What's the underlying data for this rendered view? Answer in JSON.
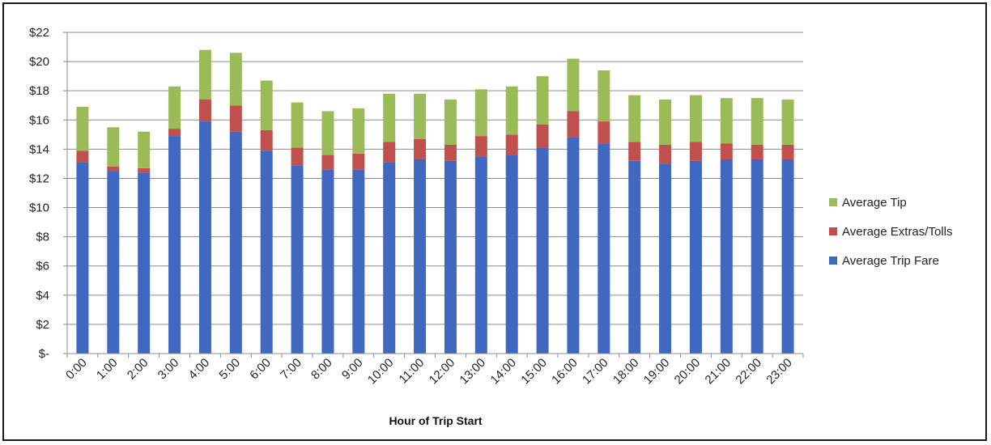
{
  "chart_data": {
    "type": "bar",
    "stacked": true,
    "title": "",
    "xlabel": "Hour of Trip Start",
    "ylabel": "",
    "ylim": [
      0,
      22
    ],
    "y_ticks": [
      0,
      2,
      4,
      6,
      8,
      10,
      12,
      14,
      16,
      18,
      20,
      22
    ],
    "y_tick_labels": [
      "$-",
      "$2",
      "$4",
      "$6",
      "$8",
      "$10",
      "$12",
      "$14",
      "$16",
      "$18",
      "$20",
      "$22"
    ],
    "grid": true,
    "legend_position": "right",
    "categories": [
      "0:00",
      "1:00",
      "2:00",
      "3:00",
      "4:00",
      "5:00",
      "6:00",
      "7:00",
      "8:00",
      "9:00",
      "10:00",
      "11:00",
      "12:00",
      "13:00",
      "14:00",
      "15:00",
      "16:00",
      "17:00",
      "18:00",
      "19:00",
      "20:00",
      "21:00",
      "22:00",
      "23:00"
    ],
    "series": [
      {
        "name": "Average Trip Fare",
        "color": "#4068C0",
        "values": [
          13.1,
          12.5,
          12.4,
          14.9,
          15.9,
          15.2,
          13.9,
          12.9,
          12.6,
          12.6,
          13.1,
          13.3,
          13.2,
          13.5,
          13.6,
          14.1,
          14.8,
          14.4,
          13.2,
          13.0,
          13.2,
          13.3,
          13.3,
          13.3
        ]
      },
      {
        "name": "Average Extras/Tolls",
        "color": "#C0504D",
        "values": [
          0.8,
          0.3,
          0.3,
          0.5,
          1.5,
          1.8,
          1.4,
          1.2,
          1.0,
          1.1,
          1.4,
          1.4,
          1.1,
          1.4,
          1.4,
          1.6,
          1.8,
          1.5,
          1.3,
          1.3,
          1.3,
          1.1,
          1.0,
          1.0
        ]
      },
      {
        "name": "Average Tip",
        "color": "#9BBB59",
        "values": [
          3.0,
          2.7,
          2.5,
          2.9,
          3.4,
          3.6,
          3.4,
          3.1,
          3.0,
          3.1,
          3.3,
          3.1,
          3.1,
          3.2,
          3.3,
          3.3,
          3.6,
          3.5,
          3.2,
          3.1,
          3.2,
          3.1,
          3.2,
          3.1
        ]
      }
    ],
    "legend_order": [
      "Average Tip",
      "Average Extras/Tolls",
      "Average Trip Fare"
    ]
  }
}
